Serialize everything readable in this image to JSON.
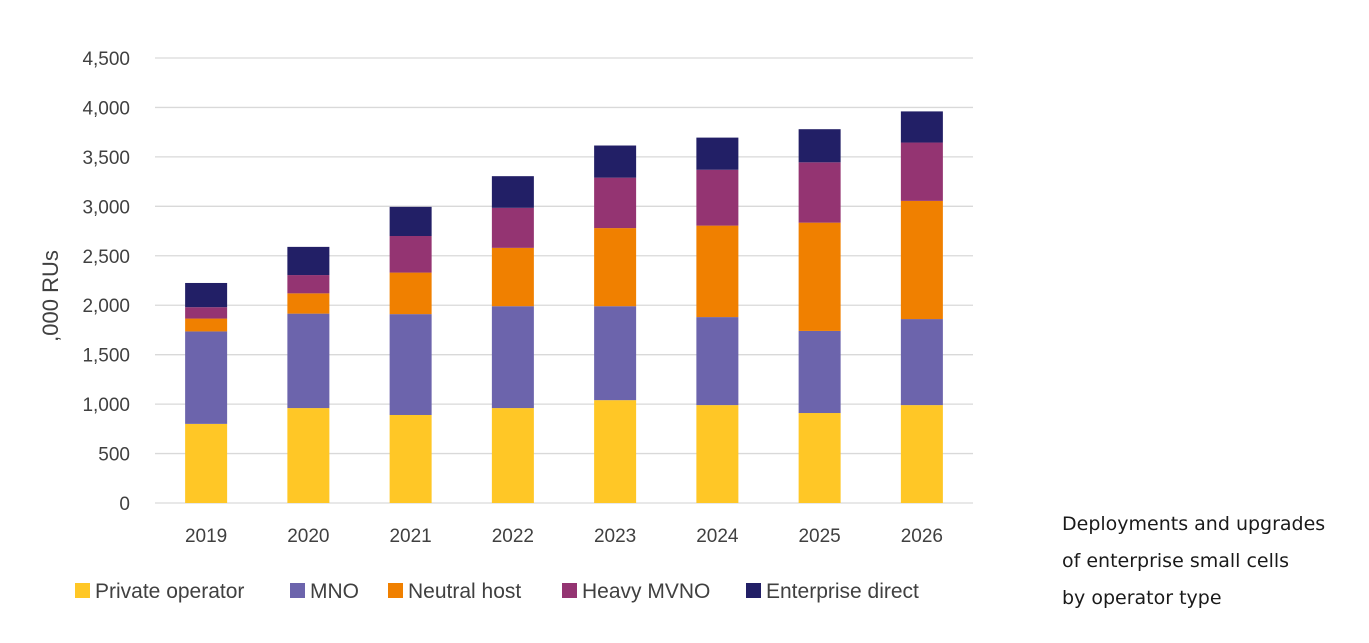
{
  "chart_data": {
    "type": "bar",
    "stacked": true,
    "title": "",
    "xlabel": "",
    "ylabel": ",000 RUs",
    "ylim": [
      0,
      4500
    ],
    "yticks": [
      0,
      500,
      1000,
      1500,
      2000,
      2500,
      3000,
      3500,
      4000,
      4500
    ],
    "ytick_labels": [
      "0",
      "500",
      "1,000",
      "1,500",
      "2,000",
      "2,500",
      "3,000",
      "3,500",
      "4,000",
      "4,500"
    ],
    "grid": true,
    "legend_position": "bottom",
    "categories": [
      "2019",
      "2020",
      "2021",
      "2022",
      "2023",
      "2024",
      "2025",
      "2026"
    ],
    "series": [
      {
        "name": "Private operator",
        "color": "#FFC726",
        "values": [
          800,
          960,
          890,
          960,
          1040,
          990,
          910,
          990
        ]
      },
      {
        "name": "MNO",
        "color": "#6C64AC",
        "values": [
          935,
          955,
          1020,
          1030,
          950,
          890,
          830,
          870
        ]
      },
      {
        "name": "Neutral host",
        "color": "#F08000",
        "values": [
          130,
          205,
          420,
          590,
          790,
          925,
          1095,
          1195
        ]
      },
      {
        "name": "Heavy MVNO",
        "color": "#943472",
        "values": [
          115,
          185,
          370,
          405,
          510,
          565,
          610,
          590
        ]
      },
      {
        "name": "Enterprise direct",
        "color": "#221F66",
        "values": [
          245,
          285,
          295,
          320,
          325,
          325,
          335,
          315
        ]
      }
    ]
  },
  "caption": {
    "lines": [
      "Deployments and upgrades",
      "of enterprise small cells",
      "by operator type"
    ]
  }
}
